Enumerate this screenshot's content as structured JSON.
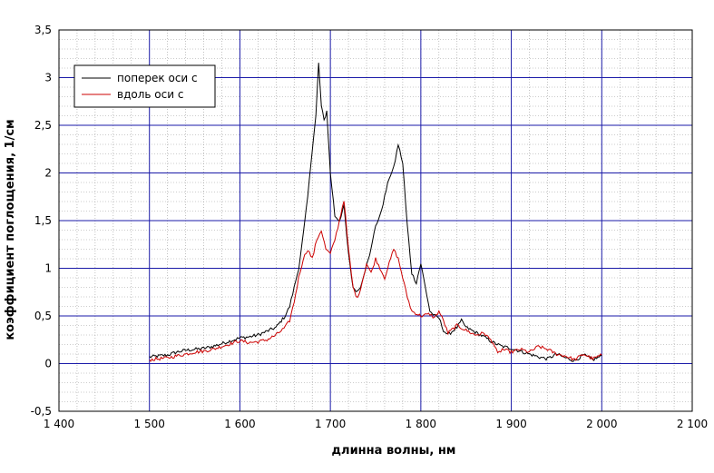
{
  "chart_data": {
    "type": "line",
    "title": "",
    "xlabel": "длинна волны, нм",
    "ylabel": "коэффициент поглощения, 1/см",
    "xlim": [
      1400,
      2100
    ],
    "ylim": [
      -0.5,
      3.5
    ],
    "x_major_step": 100,
    "y_major_step": 0.5,
    "x_ticks": [
      {
        "value": 1400,
        "label": "1 400"
      },
      {
        "value": 1500,
        "label": "1 500"
      },
      {
        "value": 1600,
        "label": "1 600"
      },
      {
        "value": 1700,
        "label": "1 700"
      },
      {
        "value": 1800,
        "label": "1 800"
      },
      {
        "value": 1900,
        "label": "1 900"
      },
      {
        "value": 2000,
        "label": "2 000"
      },
      {
        "value": 2100,
        "label": "2 100"
      }
    ],
    "y_ticks": [
      {
        "value": -0.5,
        "label": "-0,5"
      },
      {
        "value": 0,
        "label": "0"
      },
      {
        "value": 0.5,
        "label": "0,5"
      },
      {
        "value": 1,
        "label": "1"
      },
      {
        "value": 1.5,
        "label": "1,5"
      },
      {
        "value": 2,
        "label": "2"
      },
      {
        "value": 2.5,
        "label": "2,5"
      },
      {
        "value": 3,
        "label": "3"
      },
      {
        "value": 3.5,
        "label": "3,5"
      }
    ],
    "grid": true,
    "legend_position": "top-left",
    "series": [
      {
        "name": "поперек оси с",
        "color": "#000000",
        "points": [
          [
            1500,
            0.07
          ],
          [
            1510,
            0.08
          ],
          [
            1520,
            0.09
          ],
          [
            1530,
            0.12
          ],
          [
            1540,
            0.14
          ],
          [
            1550,
            0.15
          ],
          [
            1560,
            0.16
          ],
          [
            1570,
            0.18
          ],
          [
            1580,
            0.21
          ],
          [
            1590,
            0.24
          ],
          [
            1600,
            0.27
          ],
          [
            1610,
            0.28
          ],
          [
            1620,
            0.3
          ],
          [
            1630,
            0.34
          ],
          [
            1640,
            0.38
          ],
          [
            1650,
            0.5
          ],
          [
            1655,
            0.6
          ],
          [
            1660,
            0.8
          ],
          [
            1665,
            1.0
          ],
          [
            1670,
            1.35
          ],
          [
            1675,
            1.75
          ],
          [
            1680,
            2.25
          ],
          [
            1684,
            2.6
          ],
          [
            1687,
            3.15
          ],
          [
            1690,
            2.7
          ],
          [
            1693,
            2.55
          ],
          [
            1696,
            2.65
          ],
          [
            1700,
            2.0
          ],
          [
            1705,
            1.55
          ],
          [
            1710,
            1.5
          ],
          [
            1715,
            1.65
          ],
          [
            1720,
            1.15
          ],
          [
            1725,
            0.8
          ],
          [
            1730,
            0.75
          ],
          [
            1735,
            0.85
          ],
          [
            1740,
            1.05
          ],
          [
            1745,
            1.2
          ],
          [
            1750,
            1.45
          ],
          [
            1755,
            1.55
          ],
          [
            1760,
            1.75
          ],
          [
            1765,
            1.95
          ],
          [
            1770,
            2.05
          ],
          [
            1775,
            2.3
          ],
          [
            1780,
            2.1
          ],
          [
            1785,
            1.45
          ],
          [
            1790,
            0.95
          ],
          [
            1795,
            0.85
          ],
          [
            1800,
            1.05
          ],
          [
            1805,
            0.8
          ],
          [
            1810,
            0.55
          ],
          [
            1815,
            0.5
          ],
          [
            1820,
            0.48
          ],
          [
            1825,
            0.35
          ],
          [
            1830,
            0.3
          ],
          [
            1840,
            0.38
          ],
          [
            1845,
            0.45
          ],
          [
            1850,
            0.38
          ],
          [
            1860,
            0.33
          ],
          [
            1870,
            0.28
          ],
          [
            1880,
            0.22
          ],
          [
            1890,
            0.18
          ],
          [
            1900,
            0.16
          ],
          [
            1910,
            0.13
          ],
          [
            1920,
            0.1
          ],
          [
            1930,
            0.07
          ],
          [
            1940,
            0.05
          ],
          [
            1950,
            0.1
          ],
          [
            1960,
            0.06
          ],
          [
            1970,
            0.03
          ],
          [
            1980,
            0.09
          ],
          [
            1990,
            0.04
          ],
          [
            2000,
            0.08
          ]
        ]
      },
      {
        "name": "вдоль оси с",
        "color": "#cc0000",
        "points": [
          [
            1500,
            0.04
          ],
          [
            1510,
            0.05
          ],
          [
            1520,
            0.06
          ],
          [
            1530,
            0.08
          ],
          [
            1540,
            0.1
          ],
          [
            1550,
            0.12
          ],
          [
            1560,
            0.13
          ],
          [
            1570,
            0.15
          ],
          [
            1580,
            0.18
          ],
          [
            1590,
            0.21
          ],
          [
            1600,
            0.24
          ],
          [
            1610,
            0.22
          ],
          [
            1620,
            0.23
          ],
          [
            1630,
            0.25
          ],
          [
            1640,
            0.3
          ],
          [
            1650,
            0.38
          ],
          [
            1655,
            0.45
          ],
          [
            1660,
            0.65
          ],
          [
            1665,
            0.9
          ],
          [
            1670,
            1.1
          ],
          [
            1675,
            1.2
          ],
          [
            1680,
            1.1
          ],
          [
            1685,
            1.3
          ],
          [
            1690,
            1.4
          ],
          [
            1695,
            1.2
          ],
          [
            1700,
            1.15
          ],
          [
            1705,
            1.3
          ],
          [
            1710,
            1.5
          ],
          [
            1715,
            1.72
          ],
          [
            1720,
            1.2
          ],
          [
            1725,
            0.8
          ],
          [
            1730,
            0.68
          ],
          [
            1735,
            0.85
          ],
          [
            1740,
            1.05
          ],
          [
            1745,
            0.95
          ],
          [
            1750,
            1.1
          ],
          [
            1755,
            1.0
          ],
          [
            1760,
            0.9
          ],
          [
            1765,
            1.05
          ],
          [
            1770,
            1.2
          ],
          [
            1775,
            1.1
          ],
          [
            1780,
            0.9
          ],
          [
            1785,
            0.7
          ],
          [
            1790,
            0.55
          ],
          [
            1800,
            0.5
          ],
          [
            1810,
            0.52
          ],
          [
            1815,
            0.48
          ],
          [
            1820,
            0.55
          ],
          [
            1825,
            0.45
          ],
          [
            1830,
            0.32
          ],
          [
            1840,
            0.4
          ],
          [
            1850,
            0.35
          ],
          [
            1860,
            0.3
          ],
          [
            1870,
            0.32
          ],
          [
            1880,
            0.22
          ],
          [
            1885,
            0.1
          ],
          [
            1890,
            0.15
          ],
          [
            1900,
            0.12
          ],
          [
            1910,
            0.15
          ],
          [
            1920,
            0.12
          ],
          [
            1930,
            0.18
          ],
          [
            1940,
            0.15
          ],
          [
            1950,
            0.1
          ],
          [
            1960,
            0.08
          ],
          [
            1970,
            0.04
          ],
          [
            1980,
            0.1
          ],
          [
            1990,
            0.05
          ],
          [
            2000,
            0.09
          ]
        ]
      }
    ]
  }
}
